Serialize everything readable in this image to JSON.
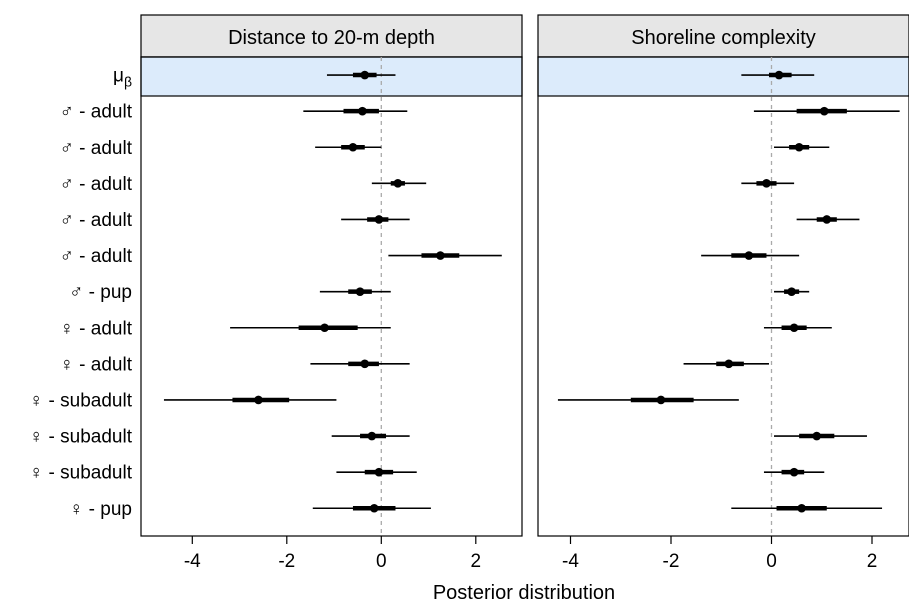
{
  "chart_data": {
    "type": "forest",
    "xlabel": "Posterior distribution",
    "x_ticks": [
      -4,
      -2,
      0,
      2
    ],
    "xlim": [
      -5.1,
      3.0
    ],
    "reference_line_x": 0,
    "highlight_color": "#dcebfb",
    "strip_color": "#e6e6e6",
    "row_labels": [
      "μβ",
      "♂ - adult",
      "♂ - adult",
      "♂ - adult",
      "♂ - adult",
      "♂ - adult",
      "♂ - pup",
      "♀ - adult",
      "♀ - adult",
      "♀ - subadult",
      "♀ - subadult",
      "♀ - subadult",
      "♀ - pup"
    ],
    "panels": [
      {
        "title": "Distance to 20-m depth",
        "estimates": [
          {
            "median": -0.35,
            "inner": [
              -0.6,
              -0.1
            ],
            "outer": [
              -1.15,
              0.3
            ]
          },
          {
            "median": -0.4,
            "inner": [
              -0.8,
              -0.05
            ],
            "outer": [
              -1.65,
              0.55
            ]
          },
          {
            "median": -0.6,
            "inner": [
              -0.85,
              -0.35
            ],
            "outer": [
              -1.4,
              0.0
            ]
          },
          {
            "median": 0.35,
            "inner": [
              0.2,
              0.5
            ],
            "outer": [
              -0.2,
              0.95
            ]
          },
          {
            "median": -0.05,
            "inner": [
              -0.3,
              0.15
            ],
            "outer": [
              -0.85,
              0.6
            ]
          },
          {
            "median": 1.25,
            "inner": [
              0.85,
              1.65
            ],
            "outer": [
              0.15,
              2.55
            ]
          },
          {
            "median": -0.45,
            "inner": [
              -0.7,
              -0.2
            ],
            "outer": [
              -1.3,
              0.2
            ]
          },
          {
            "median": -1.2,
            "inner": [
              -1.75,
              -0.5
            ],
            "outer": [
              -3.2,
              0.2
            ]
          },
          {
            "median": -0.35,
            "inner": [
              -0.7,
              -0.05
            ],
            "outer": [
              -1.5,
              0.6
            ]
          },
          {
            "median": -2.6,
            "inner": [
              -3.15,
              -1.95
            ],
            "outer": [
              -4.6,
              -0.95
            ]
          },
          {
            "median": -0.2,
            "inner": [
              -0.45,
              0.1
            ],
            "outer": [
              -1.05,
              0.6
            ]
          },
          {
            "median": -0.05,
            "inner": [
              -0.35,
              0.25
            ],
            "outer": [
              -0.95,
              0.75
            ]
          },
          {
            "median": -0.15,
            "inner": [
              -0.6,
              0.3
            ],
            "outer": [
              -1.45,
              1.05
            ]
          }
        ]
      },
      {
        "title": "Shoreline complexity",
        "estimates": [
          {
            "median": 0.15,
            "inner": [
              -0.05,
              0.4
            ],
            "outer": [
              -0.6,
              0.85
            ]
          },
          {
            "median": 1.05,
            "inner": [
              0.5,
              1.5
            ],
            "outer": [
              -0.35,
              2.55
            ]
          },
          {
            "median": 0.55,
            "inner": [
              0.35,
              0.75
            ],
            "outer": [
              0.05,
              1.15
            ]
          },
          {
            "median": -0.1,
            "inner": [
              -0.3,
              0.1
            ],
            "outer": [
              -0.6,
              0.45
            ]
          },
          {
            "median": 1.1,
            "inner": [
              0.9,
              1.3
            ],
            "outer": [
              0.5,
              1.75
            ]
          },
          {
            "median": -0.45,
            "inner": [
              -0.8,
              -0.1
            ],
            "outer": [
              -1.4,
              0.55
            ]
          },
          {
            "median": 0.4,
            "inner": [
              0.25,
              0.55
            ],
            "outer": [
              0.05,
              0.75
            ]
          },
          {
            "median": 0.45,
            "inner": [
              0.2,
              0.7
            ],
            "outer": [
              -0.15,
              1.2
            ]
          },
          {
            "median": -0.85,
            "inner": [
              -1.1,
              -0.55
            ],
            "outer": [
              -1.75,
              -0.05
            ]
          },
          {
            "median": -2.2,
            "inner": [
              -2.8,
              -1.55
            ],
            "outer": [
              -4.25,
              -0.65
            ]
          },
          {
            "median": 0.9,
            "inner": [
              0.55,
              1.25
            ],
            "outer": [
              0.05,
              1.9
            ]
          },
          {
            "median": 0.45,
            "inner": [
              0.2,
              0.65
            ],
            "outer": [
              -0.15,
              1.05
            ]
          },
          {
            "median": 0.6,
            "inner": [
              0.1,
              1.1
            ],
            "outer": [
              -0.8,
              2.2
            ]
          }
        ]
      }
    ]
  }
}
